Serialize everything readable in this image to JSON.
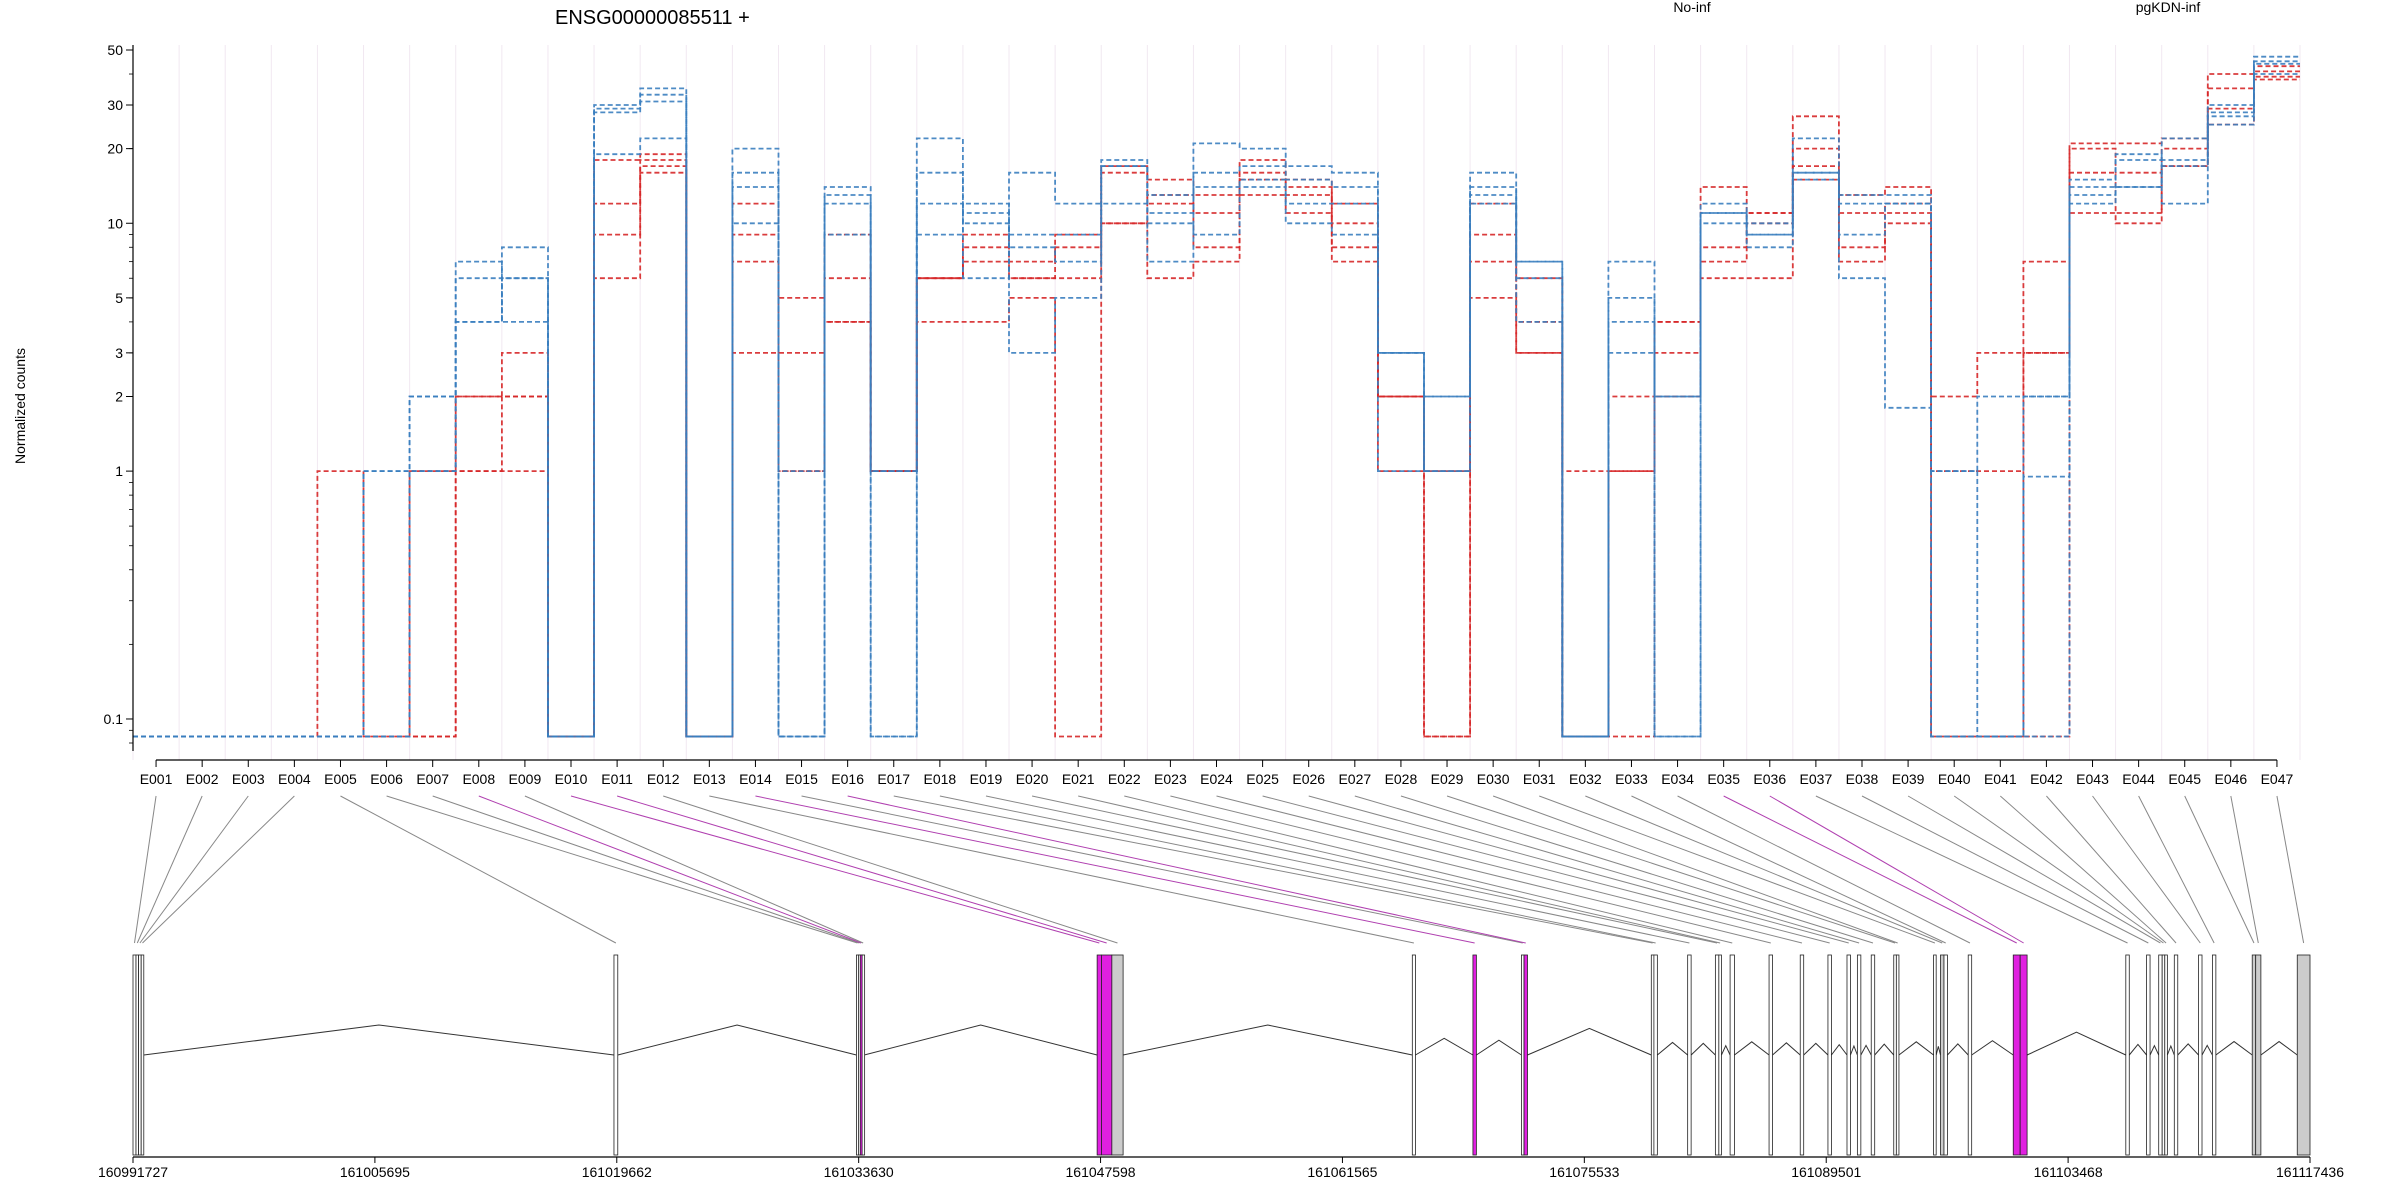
{
  "chart_data": {
    "type": "line",
    "title": "ENSG00000085511 +",
    "ylabel": "Normalized counts",
    "yscale": "log",
    "ylim": [
      0.08,
      50
    ],
    "y_ticks": [
      0.1,
      1,
      2,
      3,
      5,
      10,
      20,
      30,
      50
    ],
    "y_tick_labels": [
      "0.1",
      "1",
      "2",
      "3",
      "5",
      "10",
      "20",
      "30",
      "50"
    ],
    "legend": [
      {
        "name": "No-inf",
        "color": "#d62728"
      },
      {
        "name": "pgKDN-inf",
        "color": "#3a7ebf"
      }
    ],
    "categories": [
      "E001",
      "E002",
      "E003",
      "E004",
      "E005",
      "E006",
      "E007",
      "E008",
      "E009",
      "E010",
      "E011",
      "E012",
      "E013",
      "E014",
      "E015",
      "E016",
      "E017",
      "E018",
      "E019",
      "E020",
      "E021",
      "E022",
      "E023",
      "E024",
      "E025",
      "E026",
      "E027",
      "E028",
      "E029",
      "E030",
      "E031",
      "E032",
      "E033",
      "E034",
      "E035",
      "E036",
      "E037",
      "E038",
      "E039",
      "E040",
      "E041",
      "E042",
      "E043",
      "E044",
      "E045",
      "E046",
      "E047"
    ],
    "series": [
      {
        "group": "No-inf",
        "values": [
          0.085,
          0.085,
          0.085,
          0.085,
          1,
          0.085,
          1,
          2,
          3,
          0.085,
          18,
          19,
          0.085,
          12,
          5,
          9,
          1,
          6,
          9,
          7,
          9,
          17,
          15,
          13,
          18,
          15,
          12,
          2,
          0.085,
          9,
          6,
          0.085,
          1,
          2,
          14,
          11,
          27,
          13,
          14,
          2,
          3,
          7,
          21,
          21,
          22,
          40,
          43
        ]
      },
      {
        "group": "No-inf",
        "values": [
          0.085,
          0.085,
          0.085,
          0.085,
          0.085,
          0.085,
          0.085,
          1,
          1,
          0.085,
          6,
          16,
          0.085,
          3,
          3,
          4,
          1,
          4,
          4,
          5,
          0.085,
          10,
          6,
          7,
          13,
          11,
          7,
          1,
          0.085,
          5,
          3,
          1,
          0.085,
          3,
          6,
          6,
          15,
          7,
          10,
          1,
          1,
          3,
          11,
          10,
          17,
          25,
          38
        ]
      },
      {
        "group": "No-inf",
        "values": [
          0.085,
          0.085,
          0.085,
          0.085,
          0.085,
          0.085,
          1,
          2,
          2,
          0.085,
          12,
          17,
          0.085,
          9,
          1,
          6,
          1,
          6,
          8,
          6,
          8,
          16,
          12,
          11,
          16,
          13,
          10,
          2,
          1,
          12,
          4,
          0.085,
          2,
          4,
          8,
          10,
          17,
          11,
          12,
          0.085,
          0.085,
          0.085,
          16,
          11,
          20,
          35,
          41
        ]
      },
      {
        "group": "No-inf",
        "values": [
          0.085,
          0.085,
          0.085,
          0.085,
          0.085,
          0.085,
          0.085,
          1,
          2,
          0.085,
          9,
          18,
          0.085,
          7,
          1,
          4,
          1,
          6,
          7,
          6,
          6,
          10,
          13,
          8,
          15,
          14,
          8,
          2,
          1,
          7,
          3,
          0.085,
          1,
          4,
          7,
          11,
          20,
          8,
          11,
          0.085,
          0.085,
          3,
          20,
          16,
          17,
          29,
          39
        ]
      },
      {
        "group": "pgKDN-inf",
        "values": [
          0.085,
          0.085,
          0.085,
          0.085,
          0.085,
          1,
          2,
          4,
          6,
          0.085,
          29,
          33,
          0.085,
          16,
          1,
          13,
          0.085,
          12,
          11,
          9,
          9,
          17,
          10,
          9,
          15,
          12,
          12,
          3,
          2,
          12,
          7,
          0.085,
          4,
          2,
          11,
          9,
          15,
          12,
          12,
          1,
          2,
          2,
          14,
          14,
          17,
          28,
          40
        ]
      },
      {
        "group": "pgKDN-inf",
        "values": [
          0.085,
          0.085,
          0.085,
          0.085,
          0.085,
          1,
          1,
          6,
          4,
          0.085,
          28,
          31,
          0.085,
          20,
          0.085,
          9,
          1,
          22,
          6,
          16,
          12,
          12,
          7,
          21,
          20,
          17,
          16,
          1,
          2,
          16,
          6,
          0.085,
          7,
          0.085,
          12,
          8,
          22,
          6,
          1.8,
          0.085,
          0.085,
          0.95,
          13,
          19,
          12,
          25,
          47
        ]
      },
      {
        "group": "pgKDN-inf",
        "values": [
          0.085,
          0.085,
          0.085,
          0.085,
          0.085,
          0.085,
          1,
          4,
          8,
          0.085,
          19,
          22,
          0.085,
          14,
          0.085,
          14,
          1,
          16,
          10,
          3,
          5,
          18,
          13,
          16,
          17,
          15,
          14,
          3,
          1,
          14,
          4,
          0.085,
          3,
          0.085,
          10,
          10,
          16,
          13,
          13,
          0.085,
          0.085,
          2,
          12,
          14,
          18,
          30,
          44
        ]
      },
      {
        "group": "pgKDN-inf",
        "values": [
          0.085,
          0.085,
          0.085,
          0.085,
          0.085,
          0.085,
          2,
          7,
          6,
          0.085,
          30,
          35,
          0.085,
          10,
          0.085,
          12,
          0.085,
          9,
          12,
          8,
          7,
          17,
          11,
          14,
          14,
          10,
          9,
          3,
          1,
          13,
          7,
          0.085,
          5,
          2,
          11,
          9,
          16,
          9,
          12,
          1,
          0.085,
          0.085,
          15,
          18,
          22,
          27,
          45
        ]
      }
    ],
    "coordinate_axis": {
      "tick_labels": [
        "160991727",
        "161005695",
        "161019662",
        "161033630",
        "161047598",
        "161061565",
        "161075533",
        "161089501",
        "161103468",
        "161117436"
      ],
      "range": [
        160991727,
        161117436
      ]
    }
  }
}
